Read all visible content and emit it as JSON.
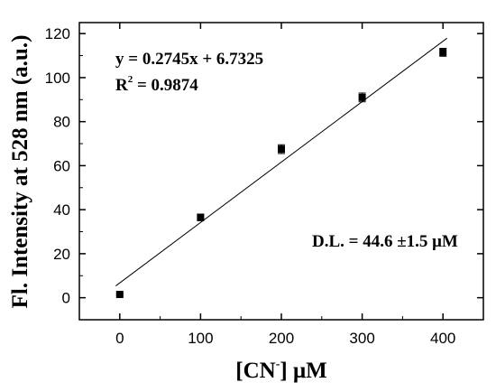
{
  "chart_data": {
    "type": "scatter",
    "xlabel": "[CN",
    "xlabel_sup": "-",
    "xlabel_unit": "] μM",
    "ylabel": "Fl. Intensity at 528 nm (a.u.)",
    "xlim": [
      -50,
      450
    ],
    "ylim": [
      -10,
      125
    ],
    "xticks": [
      0,
      100,
      200,
      300,
      400
    ],
    "yticks": [
      0,
      20,
      40,
      60,
      80,
      100,
      120
    ],
    "points": [
      {
        "x": 0,
        "y": 1.5,
        "err": 0.5
      },
      {
        "x": 100,
        "y": 36.5,
        "err": 1.5
      },
      {
        "x": 200,
        "y": 67.5,
        "err": 2.0
      },
      {
        "x": 300,
        "y": 91.0,
        "err": 2.0
      },
      {
        "x": 400,
        "y": 111.5,
        "err": 1.8
      }
    ],
    "fit": {
      "slope": 0.2745,
      "intercept": 6.7325,
      "x_range": [
        -5,
        405
      ]
    },
    "equation": "y = 0.2745x + 6.7325",
    "r2_prefix": "R",
    "r2_sup": "2",
    "r2_value": " = 0.9874",
    "detection_limit": "D.L. = 44.6 ±1.5 μM",
    "grid": false,
    "marker": "filled-square",
    "color": "#000000"
  }
}
